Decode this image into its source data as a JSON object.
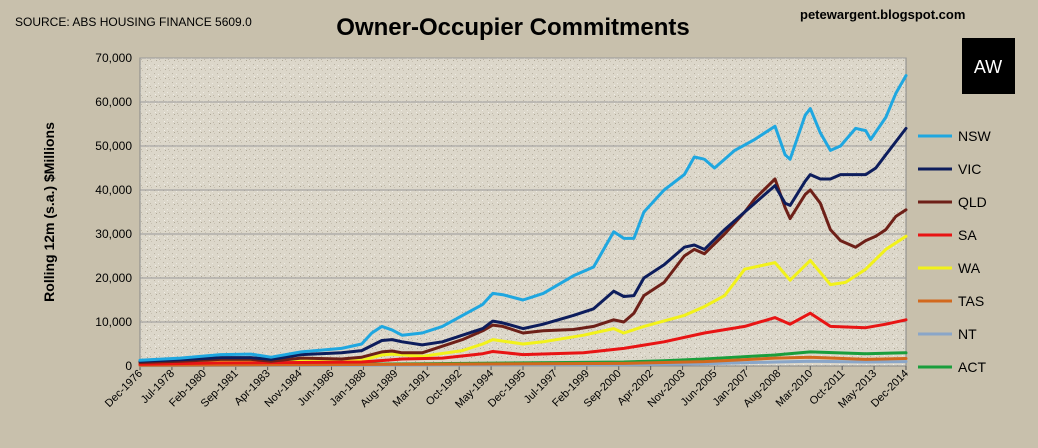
{
  "source": "SOURCE: ABS HOUSING FINANCE 5609.0",
  "blog": "petewargent.blogspot.com",
  "logo_text": "AW",
  "chart_data": {
    "type": "line",
    "title": "Owner-Occupier Commitments",
    "ylabel": "Rolling 12m (s.a.) $Millions",
    "xlabel": "",
    "ylim": [
      0,
      70000
    ],
    "yticks": [
      0,
      10000,
      20000,
      30000,
      40000,
      50000,
      60000,
      70000
    ],
    "ytick_labels": [
      "0",
      "10,000",
      "20,000",
      "30,000",
      "40,000",
      "50,000",
      "60,000",
      "70,000"
    ],
    "xlim": [
      "Dec-1976",
      "Dec-2014"
    ],
    "x_tick_labels": [
      "Dec-1976",
      "Jul-1978",
      "Feb-1980",
      "Sep-1981",
      "Apr-1983",
      "Nov-1984",
      "Jun-1986",
      "Jan-1988",
      "Aug-1989",
      "Mar-1991",
      "Oct-1992",
      "May-1994",
      "Dec-1995",
      "Jul-1997",
      "Feb-1999",
      "Sep-2000",
      "Apr-2002",
      "Nov-2003",
      "Jun-2005",
      "Jan-2007",
      "Aug-2008",
      "Mar-2010",
      "Oct-2011",
      "May-2013",
      "Dec-2014"
    ],
    "grid": true,
    "legend": "right",
    "series": [
      {
        "name": "NSW",
        "color": "#1fa7e0",
        "points": [
          [
            "Dec-1976",
            1300
          ],
          [
            "Dec-1978",
            1800
          ],
          [
            "Dec-1980",
            2600
          ],
          [
            "Jun-1982",
            2700
          ],
          [
            "Jun-1983",
            2000
          ],
          [
            "Dec-1984",
            3200
          ],
          [
            "Dec-1986",
            4000
          ],
          [
            "Dec-1987",
            5000
          ],
          [
            "Jun-1988",
            7500
          ],
          [
            "Dec-1988",
            9000
          ],
          [
            "Jun-1989",
            8200
          ],
          [
            "Dec-1989",
            7000
          ],
          [
            "Dec-1990",
            7500
          ],
          [
            "Dec-1991",
            9000
          ],
          [
            "Dec-1992",
            11500
          ],
          [
            "Dec-1993",
            14000
          ],
          [
            "Jun-1994",
            16500
          ],
          [
            "Dec-1994",
            16200
          ],
          [
            "Dec-1995",
            15000
          ],
          [
            "Dec-1996",
            16500
          ],
          [
            "Jun-1998",
            20500
          ],
          [
            "Jun-1999",
            22500
          ],
          [
            "Jun-2000",
            30500
          ],
          [
            "Dec-2000",
            29000
          ],
          [
            "Jun-2001",
            29000
          ],
          [
            "Dec-2001",
            35000
          ],
          [
            "Dec-2002",
            40000
          ],
          [
            "Dec-2003",
            43500
          ],
          [
            "Jun-2004",
            47500
          ],
          [
            "Dec-2004",
            47000
          ],
          [
            "Jun-2005",
            45000
          ],
          [
            "Dec-2005",
            47000
          ],
          [
            "Jun-2006",
            49000
          ],
          [
            "Jun-2007",
            51500
          ],
          [
            "Jun-2008",
            54500
          ],
          [
            "Dec-2008",
            48000
          ],
          [
            "Mar-2009",
            47000
          ],
          [
            "Dec-2009",
            57000
          ],
          [
            "Mar-2010",
            58500
          ],
          [
            "Sep-2010",
            53000
          ],
          [
            "Mar-2011",
            49000
          ],
          [
            "Sep-2011",
            50000
          ],
          [
            "Jun-2012",
            54000
          ],
          [
            "Dec-2012",
            53500
          ],
          [
            "Mar-2013",
            51500
          ],
          [
            "Dec-2013",
            56500
          ],
          [
            "Jun-2014",
            62000
          ],
          [
            "Dec-2014",
            66000
          ]
        ]
      },
      {
        "name": "VIC",
        "color": "#0d1d5c",
        "points": [
          [
            "Dec-1976",
            1100
          ],
          [
            "Dec-1978",
            1400
          ],
          [
            "Dec-1980",
            1900
          ],
          [
            "Jun-1982",
            1900
          ],
          [
            "Jun-1983",
            1500
          ],
          [
            "Dec-1984",
            2600
          ],
          [
            "Dec-1986",
            3000
          ],
          [
            "Dec-1987",
            3500
          ],
          [
            "Dec-1988",
            5800
          ],
          [
            "Jun-1989",
            6000
          ],
          [
            "Dec-1989",
            5500
          ],
          [
            "Dec-1990",
            4800
          ],
          [
            "Dec-1991",
            5500
          ],
          [
            "Dec-1992",
            7000
          ],
          [
            "Dec-1993",
            8500
          ],
          [
            "Jun-1994",
            10200
          ],
          [
            "Dec-1994",
            9800
          ],
          [
            "Dec-1995",
            8500
          ],
          [
            "Dec-1996",
            9500
          ],
          [
            "Jun-1998",
            11500
          ],
          [
            "Jun-1999",
            13000
          ],
          [
            "Jun-2000",
            17000
          ],
          [
            "Dec-2000",
            15800
          ],
          [
            "Jun-2001",
            16000
          ],
          [
            "Dec-2001",
            20000
          ],
          [
            "Dec-2002",
            23000
          ],
          [
            "Dec-2003",
            27000
          ],
          [
            "Jun-2004",
            27500
          ],
          [
            "Dec-2004",
            26500
          ],
          [
            "Dec-2005",
            31000
          ],
          [
            "Dec-2006",
            35000
          ],
          [
            "Jun-2007",
            37000
          ],
          [
            "Jun-2008",
            41000
          ],
          [
            "Dec-2008",
            37000
          ],
          [
            "Mar-2009",
            36500
          ],
          [
            "Dec-2009",
            42000
          ],
          [
            "Mar-2010",
            43500
          ],
          [
            "Sep-2010",
            42500
          ],
          [
            "Mar-2011",
            42500
          ],
          [
            "Sep-2011",
            43500
          ],
          [
            "Jun-2012",
            43500
          ],
          [
            "Dec-2012",
            43500
          ],
          [
            "Jun-2013",
            45000
          ],
          [
            "Dec-2013",
            48000
          ],
          [
            "Jun-2014",
            51000
          ],
          [
            "Dec-2014",
            54000
          ]
        ]
      },
      {
        "name": "QLD",
        "color": "#6e2018",
        "points": [
          [
            "Dec-1976",
            800
          ],
          [
            "Dec-1978",
            1100
          ],
          [
            "Dec-1980",
            1500
          ],
          [
            "Jun-1982",
            1500
          ],
          [
            "Jun-1983",
            1100
          ],
          [
            "Dec-1984",
            1800
          ],
          [
            "Dec-1986",
            1600
          ],
          [
            "Dec-1987",
            2000
          ],
          [
            "Dec-1988",
            3200
          ],
          [
            "Jun-1989",
            3400
          ],
          [
            "Dec-1989",
            3000
          ],
          [
            "Dec-1990",
            3000
          ],
          [
            "Dec-1991",
            4500
          ],
          [
            "Dec-1992",
            6000
          ],
          [
            "Dec-1993",
            8000
          ],
          [
            "Jun-1994",
            9300
          ],
          [
            "Dec-1994",
            9000
          ],
          [
            "Dec-1995",
            7500
          ],
          [
            "Dec-1996",
            8000
          ],
          [
            "Jun-1998",
            8300
          ],
          [
            "Jun-1999",
            9000
          ],
          [
            "Jun-2000",
            10500
          ],
          [
            "Dec-2000",
            10000
          ],
          [
            "Jun-2001",
            12000
          ],
          [
            "Dec-2001",
            16000
          ],
          [
            "Dec-2002",
            19000
          ],
          [
            "Dec-2003",
            25000
          ],
          [
            "Jun-2004",
            26500
          ],
          [
            "Dec-2004",
            25500
          ],
          [
            "Dec-2005",
            30000
          ],
          [
            "Dec-2006",
            35000
          ],
          [
            "Jun-2007",
            38000
          ],
          [
            "Jun-2008",
            42500
          ],
          [
            "Dec-2008",
            36000
          ],
          [
            "Mar-2009",
            33500
          ],
          [
            "Dec-2009",
            39000
          ],
          [
            "Mar-2010",
            40000
          ],
          [
            "Sep-2010",
            37000
          ],
          [
            "Mar-2011",
            31000
          ],
          [
            "Sep-2011",
            28500
          ],
          [
            "Jun-2012",
            27000
          ],
          [
            "Dec-2012",
            28500
          ],
          [
            "Jun-2013",
            29500
          ],
          [
            "Dec-2013",
            31000
          ],
          [
            "Jun-2014",
            34000
          ],
          [
            "Dec-2014",
            35500
          ]
        ]
      },
      {
        "name": "SA",
        "color": "#e81414",
        "points": [
          [
            "Dec-1976",
            400
          ],
          [
            "Dec-1980",
            700
          ],
          [
            "Dec-1984",
            800
          ],
          [
            "Dec-1987",
            900
          ],
          [
            "Dec-1989",
            1600
          ],
          [
            "Dec-1991",
            1800
          ],
          [
            "Dec-1993",
            2800
          ],
          [
            "Jun-1994",
            3300
          ],
          [
            "Dec-1995",
            2600
          ],
          [
            "Dec-1998",
            3000
          ],
          [
            "Dec-2000",
            4000
          ],
          [
            "Dec-2002",
            5500
          ],
          [
            "Dec-2004",
            7500
          ],
          [
            "Dec-2006",
            9000
          ],
          [
            "Jun-2008",
            11000
          ],
          [
            "Mar-2009",
            9500
          ],
          [
            "Mar-2010",
            12000
          ],
          [
            "Mar-2011",
            9000
          ],
          [
            "Dec-2012",
            8700
          ],
          [
            "Dec-2013",
            9500
          ],
          [
            "Dec-2014",
            10500
          ]
        ]
      },
      {
        "name": "WA",
        "color": "#f2f21a",
        "points": [
          [
            "Dec-1976",
            600
          ],
          [
            "Dec-1980",
            900
          ],
          [
            "Dec-1984",
            1200
          ],
          [
            "Dec-1987",
            1300
          ],
          [
            "Dec-1988",
            2500
          ],
          [
            "Jun-1989",
            2700
          ],
          [
            "Dec-1990",
            2200
          ],
          [
            "Dec-1992",
            3500
          ],
          [
            "Dec-1993",
            5000
          ],
          [
            "Jun-1994",
            6000
          ],
          [
            "Dec-1995",
            5000
          ],
          [
            "Dec-1996",
            5500
          ],
          [
            "Dec-1998",
            7000
          ],
          [
            "Jun-2000",
            8500
          ],
          [
            "Dec-2000",
            7500
          ],
          [
            "Dec-2001",
            9000
          ],
          [
            "Dec-2003",
            11500
          ],
          [
            "Dec-2004",
            13500
          ],
          [
            "Dec-2005",
            16000
          ],
          [
            "Dec-2006",
            22000
          ],
          [
            "Jun-2008",
            23500
          ],
          [
            "Mar-2009",
            19500
          ],
          [
            "Mar-2010",
            24000
          ],
          [
            "Mar-2011",
            18500
          ],
          [
            "Dec-2011",
            19000
          ],
          [
            "Dec-2012",
            22000
          ],
          [
            "Dec-2013",
            26500
          ],
          [
            "Dec-2014",
            29500
          ]
        ]
      },
      {
        "name": "TAS",
        "color": "#d2691e",
        "points": [
          [
            "Dec-1976",
            150
          ],
          [
            "Dec-1990",
            400
          ],
          [
            "Dec-2000",
            600
          ],
          [
            "Dec-2004",
            1000
          ],
          [
            "Jun-2008",
            1800
          ],
          [
            "Mar-2010",
            2000
          ],
          [
            "Dec-2012",
            1500
          ],
          [
            "Dec-2014",
            1700
          ]
        ]
      },
      {
        "name": "NT",
        "color": "#8aa6c8",
        "points": [
          [
            "Dec-1976",
            80
          ],
          [
            "Dec-1990",
            200
          ],
          [
            "Dec-2000",
            300
          ],
          [
            "Dec-2004",
            500
          ],
          [
            "Jun-2008",
            900
          ],
          [
            "Mar-2010",
            1100
          ],
          [
            "Dec-2012",
            900
          ],
          [
            "Dec-2014",
            1000
          ]
        ]
      },
      {
        "name": "ACT",
        "color": "#1a9e3c",
        "points": [
          [
            "Dec-1976",
            200
          ],
          [
            "Dec-1990",
            500
          ],
          [
            "Dec-2000",
            900
          ],
          [
            "Dec-2002",
            1200
          ],
          [
            "Dec-2004",
            1600
          ],
          [
            "Jun-2008",
            2500
          ],
          [
            "Mar-2010",
            3200
          ],
          [
            "Dec-2012",
            2800
          ],
          [
            "Dec-2014",
            3000
          ]
        ]
      }
    ]
  }
}
